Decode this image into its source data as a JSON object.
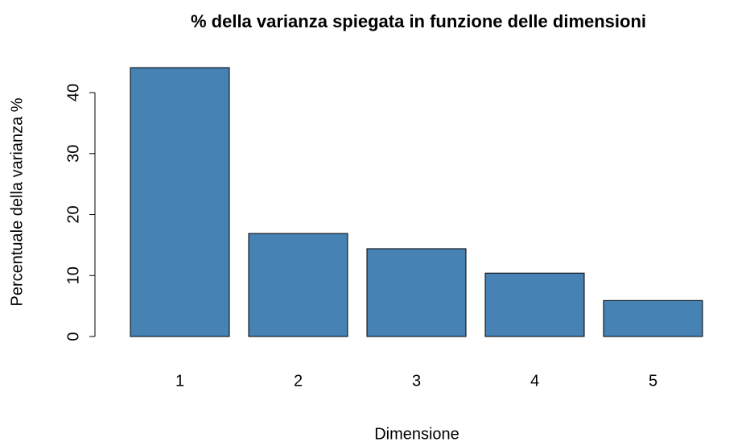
{
  "chart_data": {
    "type": "bar",
    "title": "% della varianza spiegata in funzione delle dimensioni",
    "xlabel": "Dimensione",
    "ylabel": "Percentuale della varianza %",
    "categories": [
      "1",
      "2",
      "3",
      "4",
      "5"
    ],
    "values": [
      44.1,
      16.9,
      14.4,
      10.4,
      5.9
    ],
    "color": "#4682b4",
    "ylim": [
      0,
      44.1
    ],
    "yticks": [
      0,
      10,
      20,
      30,
      40
    ],
    "grid": false
  }
}
